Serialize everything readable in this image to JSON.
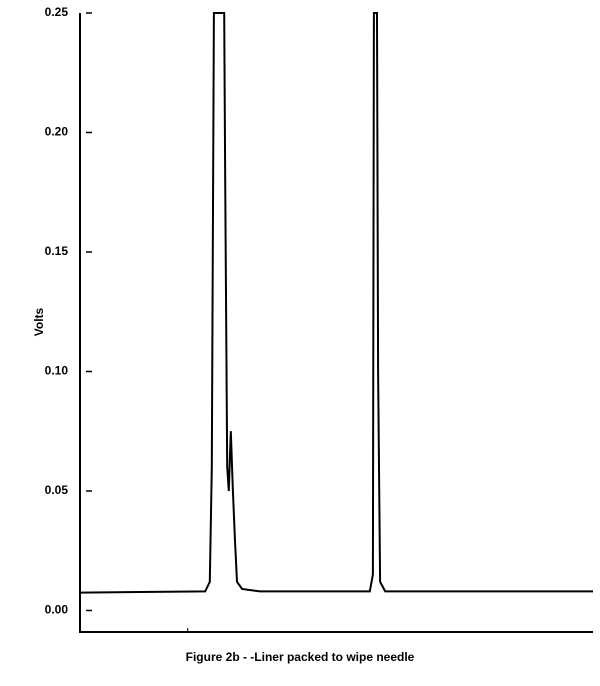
{
  "chart_data": {
    "type": "line",
    "caption": "Figure 2b - -Liner packed to wipe needle",
    "ylabel": "Volts",
    "xlim": [
      0,
      100
    ],
    "xticks": [
      21
    ],
    "ylim": [
      -0.009,
      0.25
    ],
    "yticks": [
      {
        "value": 0,
        "label": "0.00"
      },
      0.05,
      {
        "value": 0.1,
        "label": "0.10"
      },
      0.15,
      {
        "value": 0.2,
        "label": "0.20"
      },
      0.25
    ],
    "series": [
      {
        "color": "#000000",
        "x": [
          0,
          24.4,
          25.3,
          25.7,
          26.1,
          28.1,
          28.3,
          28.7,
          29.0,
          29.4,
          29.8,
          30.2,
          30.6,
          31.6,
          35.1,
          56.5,
          57.1,
          57.3,
          57.9,
          58.1,
          58.5,
          59.5,
          100
        ],
        "values": [
          0.0075,
          0.008,
          0.012,
          0.06,
          0.25,
          0.25,
          0.18,
          0.06,
          0.05,
          0.075,
          0.05,
          0.03,
          0.012,
          0.009,
          0.008,
          0.008,
          0.015,
          0.25,
          0.25,
          0.1,
          0.012,
          0.008,
          0.008
        ]
      }
    ]
  }
}
